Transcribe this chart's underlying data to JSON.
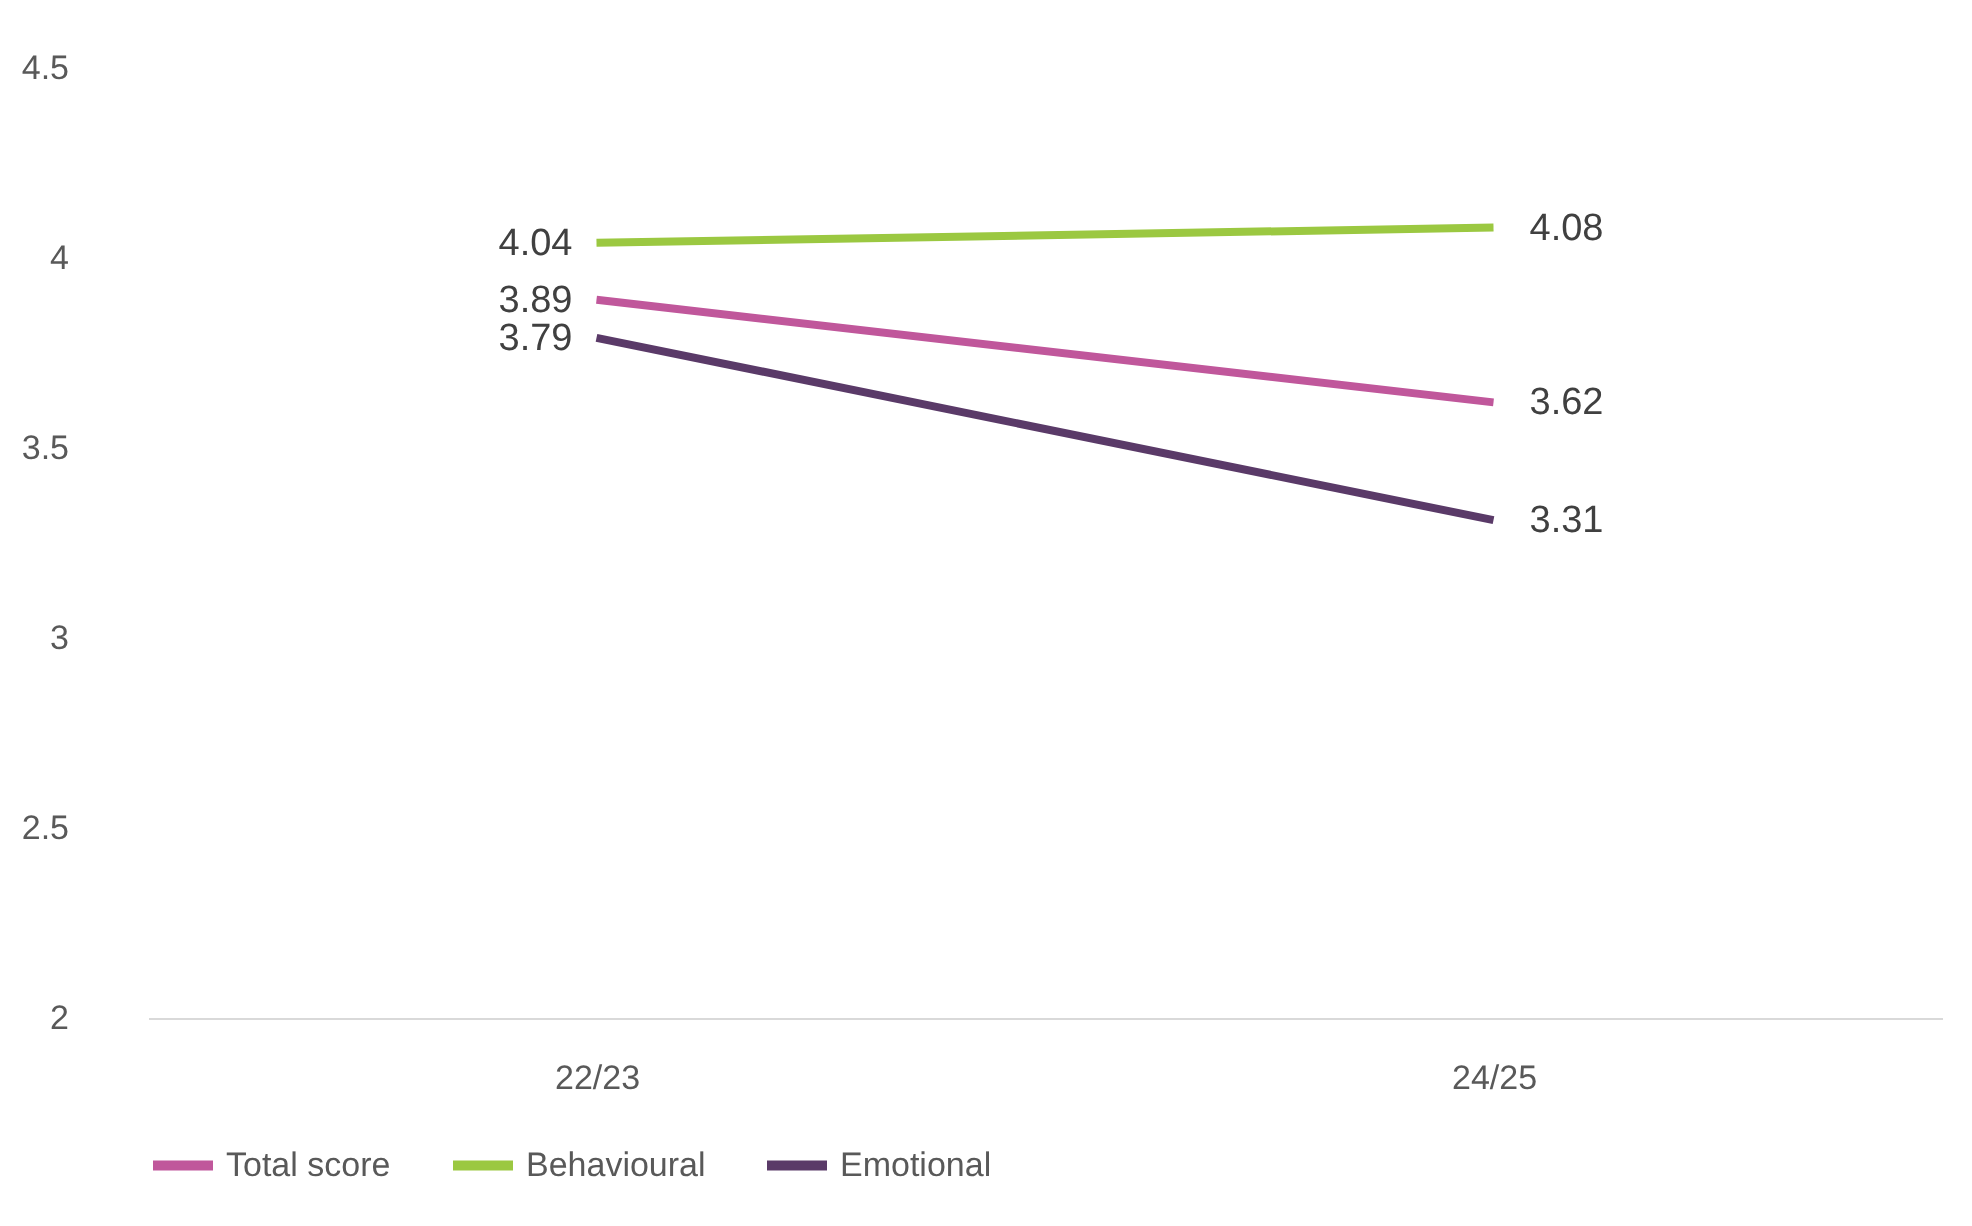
{
  "chart_data": {
    "type": "line",
    "categories": [
      "22/23",
      "24/25"
    ],
    "series": [
      {
        "name": "Total score",
        "color": "#c0579b",
        "values": [
          3.89,
          3.62
        ]
      },
      {
        "name": "Behavioural",
        "color": "#9bc841",
        "values": [
          4.04,
          4.08
        ]
      },
      {
        "name": "Emotional",
        "color": "#5a3a68",
        "values": [
          3.79,
          3.31
        ]
      }
    ],
    "ylim": [
      2,
      4.5
    ],
    "yticks": [
      2,
      2.5,
      3,
      3.5,
      4,
      4.5
    ],
    "data_labels": true,
    "legend": "bottom",
    "grid": false,
    "marker": "none",
    "line_style": "solid"
  }
}
